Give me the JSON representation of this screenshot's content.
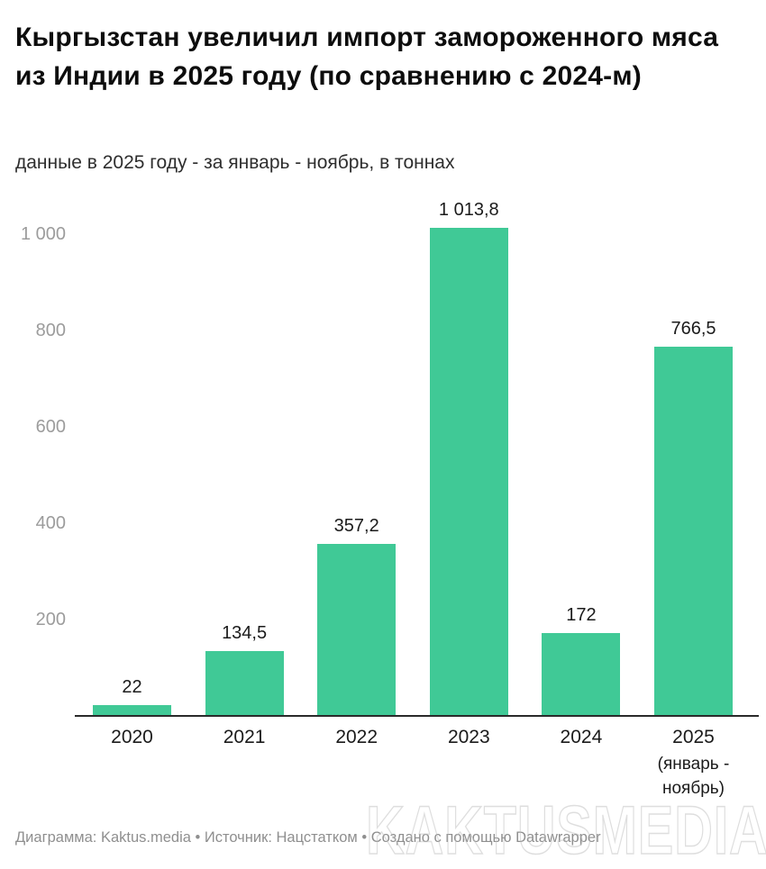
{
  "header": {
    "title": "Кыргызстан увеличил импорт замороженного мяса из Индии в 2025 году (по сравнению с 2024-м)",
    "subtitle": "данные в 2025 году - за январь - ноябрь, в тоннах"
  },
  "chart_data": {
    "type": "bar",
    "title": "Кыргызстан увеличил импорт замороженного мяса из Индии в 2025 году (по сравнению с 2024-м)",
    "subtitle": "данные в 2025 году - за январь - ноябрь, в тоннах",
    "unit": "тонны",
    "categories": [
      "2020",
      "2021",
      "2022",
      "2023",
      "2024",
      "2025"
    ],
    "category_sublabels": [
      "",
      "",
      "",
      "",
      "",
      "(январь -\nноябрь)"
    ],
    "values": [
      22,
      134.5,
      357.2,
      1013.8,
      172,
      766.5
    ],
    "value_labels": [
      "22",
      "134,5",
      "357,2",
      "1 013,8",
      "172",
      "766,5"
    ],
    "ylim": [
      0,
      1075
    ],
    "yticks": [
      {
        "value": 200,
        "label": "200"
      },
      {
        "value": 400,
        "label": "400"
      },
      {
        "value": 600,
        "label": "600"
      },
      {
        "value": 800,
        "label": "800"
      },
      {
        "value": 1000,
        "label": "1 000"
      }
    ],
    "grid": false,
    "legend": "none",
    "bar_color": "#40c996",
    "axis_line_color": "#2a2a2a"
  },
  "footer": {
    "text": "Диаграмма: Kaktus.media • Источник: Нацстатком • Создано с помощью Datawrapper"
  },
  "watermark": {
    "text": "KAKTUSMEDIA"
  }
}
